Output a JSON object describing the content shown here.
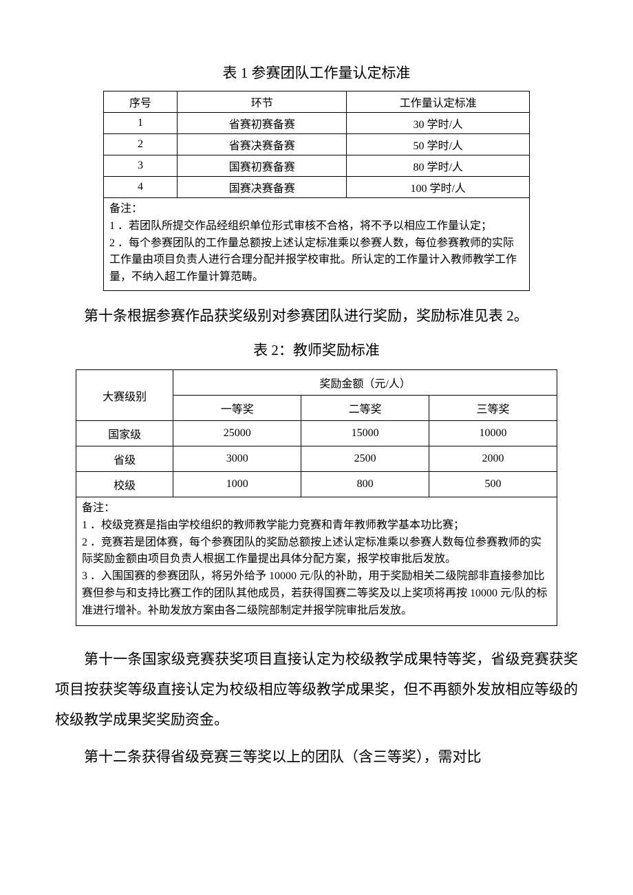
{
  "table1": {
    "title": "表 1 参赛团队工作量认定标准",
    "headers": {
      "seq": "序号",
      "stage": "环节",
      "std": "工作量认定标准"
    },
    "rows": [
      {
        "seq": "1",
        "stage": "省赛初赛备赛",
        "std": "30 学时/人"
      },
      {
        "seq": "2",
        "stage": "省赛决赛备赛",
        "std": "50 学时/人"
      },
      {
        "seq": "3",
        "stage": "国赛初赛备赛",
        "std": "80 学时/人"
      },
      {
        "seq": "4",
        "stage": "国赛决赛备赛",
        "std": "100 学时/人"
      }
    ],
    "notes": {
      "title": "备注：",
      "n1": "1 ．若团队所提交作品经组织单位形式审核不合格，将不予以相应工作量认定；",
      "n2": "2 ．每个参赛团队的工作量总额按上述认定标准乘以参赛人数，每位参赛教师的实际工作量由项目负责人进行合理分配并报学校审批。所认定的工作量计入教师教学工作量，不纳入超工作量计算范畴。"
    }
  },
  "para_art10": "第十条根据参赛作品获奖级别对参赛团队进行奖励，奖励标准见表 2。",
  "table2": {
    "title": "表 2：教师奖励标准",
    "headers": {
      "level": "大赛级别",
      "amount_span": "奖励金额（元/人）",
      "first": "一等奖",
      "second": "二等奖",
      "third": "三等奖"
    },
    "rows": [
      {
        "level": "国家级",
        "first": "25000",
        "second": "15000",
        "third": "10000"
      },
      {
        "level": "省级",
        "first": "3000",
        "second": "2500",
        "third": "2000"
      },
      {
        "level": "校级",
        "first": "1000",
        "second": "800",
        "third": "500"
      }
    ],
    "notes": {
      "title": "备注：",
      "n1": "1 ．校级竞赛是指由学校组织的教师教学能力竞赛和青年教师教学基本功比赛；",
      "n2": "2 ．竞赛若是团体赛，每个参赛团队的奖励总额按上述认定标准乘以参赛人数每位参赛教师的实际奖励金额由项目负责人根据工作量提出具体分配方案，报学校审批后发放。",
      "n3": "3 ．入围国赛的参赛团队，将另外给予 10000 元/队的补助，用于奖励相关二级院部非直接参加比赛但参与和支持比赛工作的团队其他成员，若获得国赛二等奖及以上奖项将再按 10000 元/队的标准进行增补。补助发放方案由各二级院部制定并报学院审批后发放。"
    }
  },
  "para_art11": "第十一条国家级竞赛获奖项目直接认定为校级教学成果特等奖，省级竞赛获奖项目按获奖等级直接认定为校级相应等级教学成果奖，但不再额外发放相应等级的校级教学成果奖奖励资金。",
  "para_art12": "第十二条获得省级竞赛三等奖以上的团队（含三等奖），需对比"
}
